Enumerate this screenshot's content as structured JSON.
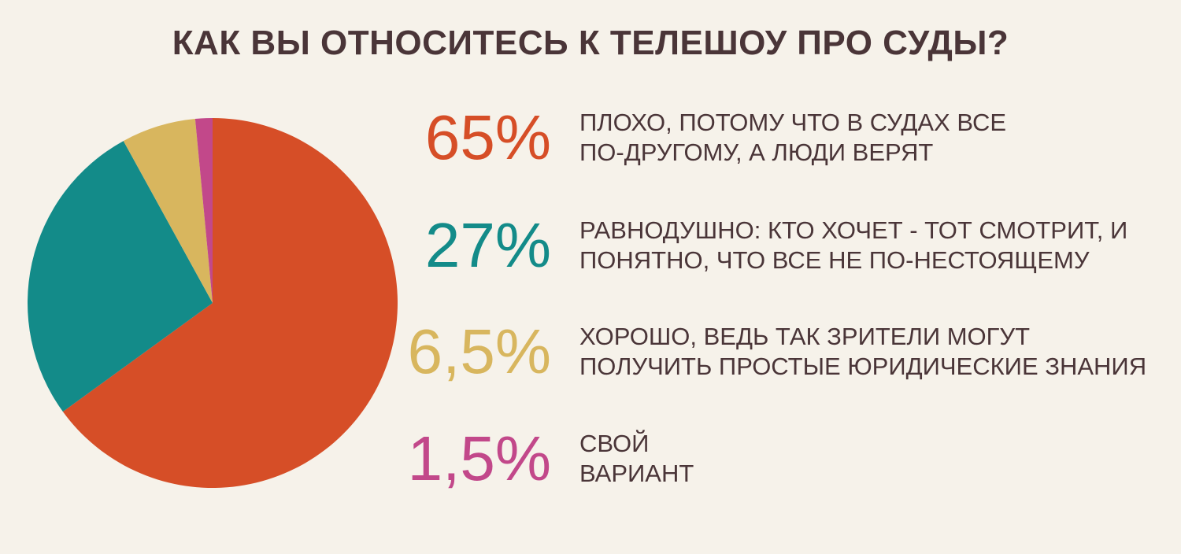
{
  "title": "КАК ВЫ ОТНОСИТЕСЬ К ТЕЛЕШОУ ПРО СУДЫ?",
  "colors": {
    "background": "#f6f2ea",
    "text": "#4a3538"
  },
  "chart_data": {
    "type": "pie",
    "title": "КАК ВЫ ОТНОСИТЕСЬ К ТЕЛЕШОУ ПРО СУДЫ?",
    "slices": [
      {
        "value": 65,
        "percent_label": "65%",
        "label_lines": [
          "ПЛОХО, ПОТОМУ ЧТО В СУДАХ ВСЕ",
          "ПО-ДРУГОМУ, А ЛЮДИ ВЕРЯТ"
        ],
        "color": "#d64e27"
      },
      {
        "value": 27,
        "percent_label": "27%",
        "label_lines": [
          "РАВНОДУШНО: КТО ХОЧЕТ - ТОТ СМОТРИТ, И",
          "ПОНЯТНО, ЧТО ВСЕ НЕ ПО-НЕСТОЯЩЕМУ"
        ],
        "color": "#138b89"
      },
      {
        "value": 6.5,
        "percent_label": "6,5%",
        "label_lines": [
          "ХОРОШО, ВЕДЬ ТАК ЗРИТЕЛИ МОГУТ",
          "ПОЛУЧИТЬ ПРОСТЫЕ ЮРИДИЧЕСКИЕ ЗНАНИЯ"
        ],
        "color": "#d8b65e"
      },
      {
        "value": 1.5,
        "percent_label": "1,5%",
        "label_lines": [
          "СВОЙ",
          "ВАРИАНТ"
        ],
        "color": "#c2488a"
      }
    ],
    "legend_placement": "right"
  }
}
